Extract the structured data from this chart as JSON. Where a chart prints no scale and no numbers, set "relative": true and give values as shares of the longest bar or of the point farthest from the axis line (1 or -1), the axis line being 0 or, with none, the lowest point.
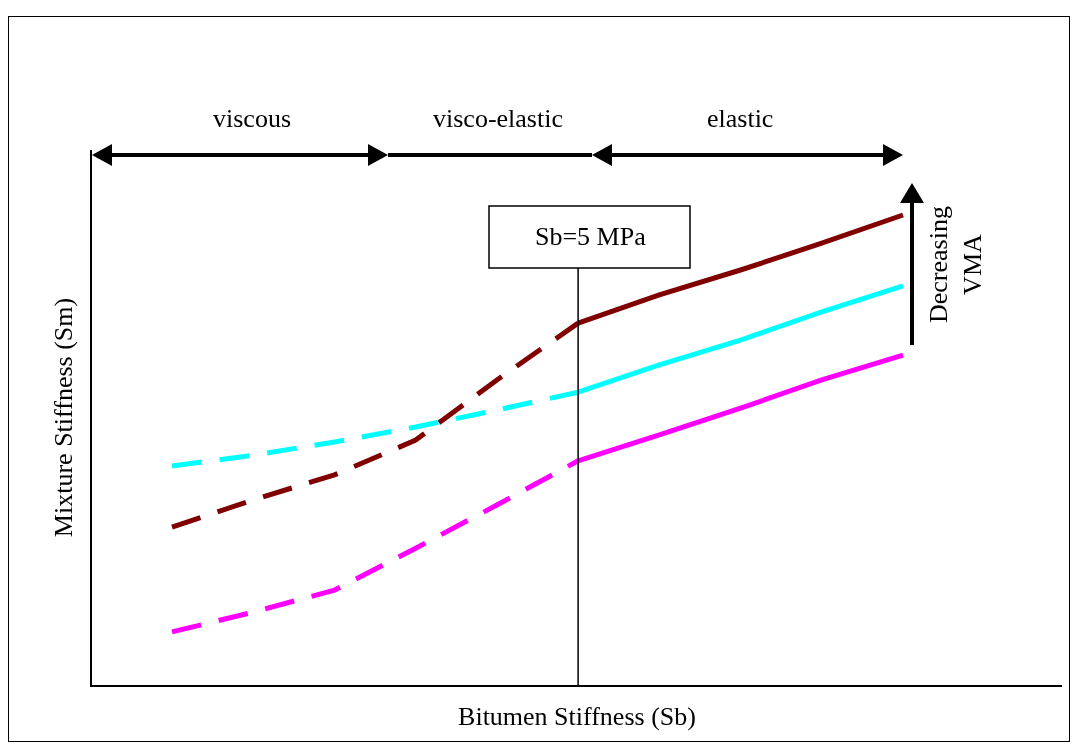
{
  "chart_data": {
    "type": "line",
    "relative": true,
    "xlabel": "Bitumen Stiffness (Sb)",
    "ylabel": "Mixture Stiffness (Sm)",
    "categories": [
      null,
      null,
      null,
      null,
      null,
      null,
      null,
      null,
      null,
      null
    ],
    "series": [
      {
        "color": "#800000",
        "line_style": "dashed",
        "values": [
          0.336,
          0.394,
          0.447,
          0.521,
          0.649,
          0.77,
          null,
          null,
          null,
          null
        ]
      },
      {
        "color": "#800000",
        "line_style": "solid",
        "values": [
          null,
          null,
          null,
          null,
          null,
          0.77,
          0.83,
          0.883,
          0.94,
          1
        ]
      },
      {
        "color": "#00ffff",
        "line_style": "dashed",
        "values": [
          0.466,
          0.489,
          0.517,
          0.549,
          0.585,
          0.623,
          null,
          null,
          null,
          null
        ]
      },
      {
        "color": "#00ffff",
        "line_style": "solid",
        "values": [
          null,
          null,
          null,
          null,
          null,
          0.623,
          0.681,
          0.734,
          0.794,
          0.849
        ]
      },
      {
        "color": "#ff00ff",
        "line_style": "dashed",
        "values": [
          0.113,
          0.155,
          0.202,
          0.291,
          0.383,
          0.477,
          null,
          null,
          null,
          null
        ]
      },
      {
        "color": "#ff00ff",
        "line_style": "solid",
        "values": [
          null,
          null,
          null,
          null,
          null,
          0.477,
          0.532,
          0.589,
          0.649,
          0.702
        ]
      }
    ],
    "annotations": [
      "viscous",
      "visco-elastic",
      "elastic",
      "Decreasing\nVMA",
      "Sb=5 MPa"
    ],
    "marker": "none"
  }
}
